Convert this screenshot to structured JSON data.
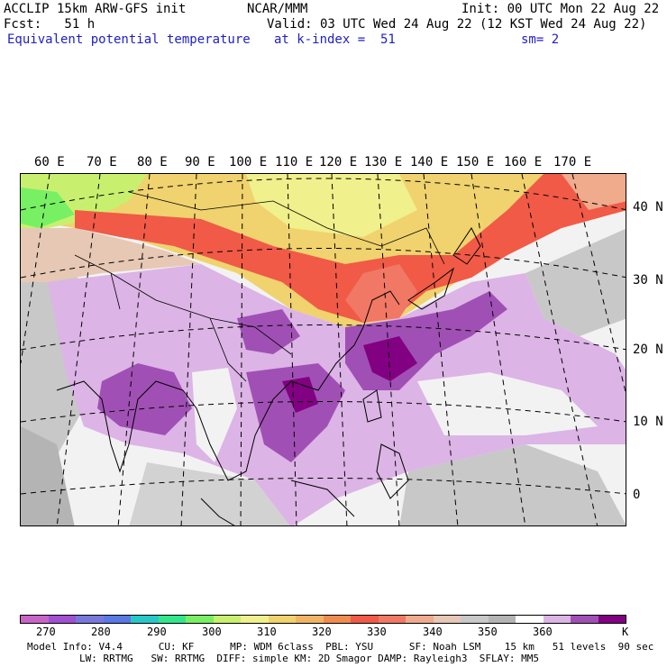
{
  "header": {
    "model_line": "ACCLIP 15km ARW-GFS init",
    "center": "NCAR/MMM",
    "init": "Init: 00 UTC Mon 22 Aug 22",
    "fcst": "Fcst:   51 h",
    "valid": "Valid: 03 UTC Wed 24 Aug 22 (12 KST Wed 24 Aug 22)",
    "field": "Equivalent potential temperature",
    "level": "at k-index =  51",
    "smooth": "sm= 2"
  },
  "longitude_labels": [
    "60 E",
    "70 E",
    "80 E",
    "90 E",
    "100 E",
    "110 E",
    "120 E",
    "130 E",
    "140 E",
    "150 E",
    "160 E",
    "170 E"
  ],
  "latitude_labels": [
    "40 N",
    "30 N",
    "20 N",
    "10 N",
    "0"
  ],
  "colorbar": {
    "colors": [
      "#c864c8",
      "#a050d2",
      "#7878dc",
      "#5a78e6",
      "#28c8c8",
      "#32e68c",
      "#78f064",
      "#c8f06e",
      "#f0f08c",
      "#f0d26e",
      "#f0b464",
      "#f08c50",
      "#f05a46",
      "#f07864",
      "#f0aa8c",
      "#e6c8b4",
      "#c8c8c8",
      "#b4b4b4",
      "#ffffff",
      "#dcb4e6",
      "#a050b4",
      "#820082"
    ],
    "labels": [
      "270",
      "280",
      "290",
      "300",
      "310",
      "320",
      "330",
      "340",
      "350",
      "360",
      "K"
    ]
  },
  "footer": {
    "line1": "Model Info: V4.4      CU: KF      MP: WDM 6class  PBL: YSU      SF: Noah LSM    15 km   51 levels  90 sec",
    "line2": "LW: RRTMG   SW: RRTMG  DIFF: simple KM: 2D Smagor DAMP: Rayleigh3  SFLAY: MM5"
  }
}
